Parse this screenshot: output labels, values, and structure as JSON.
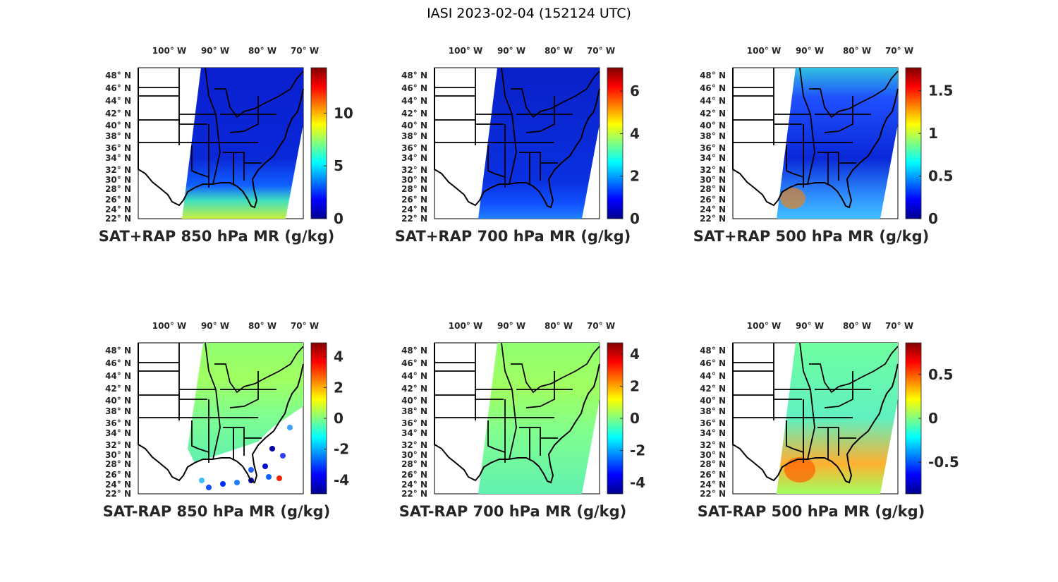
{
  "title": "IASI 2023-02-04 (152124 UTC)",
  "lon_labels": [
    "100° W",
    "90° W",
    "80° W",
    "70° W"
  ],
  "lat_labels": [
    "48° N",
    "46° N",
    "44° N",
    "42° N",
    "40° N",
    "38° N",
    "36° N",
    "34° N",
    "32° N",
    "30° N",
    "28° N",
    "26° N",
    "24° N",
    "22° N"
  ],
  "colormap": "jet",
  "panels": [
    {
      "label": "SAT+RAP 850 hPa MR (g/kg)",
      "clim": [
        0,
        14.3
      ],
      "ticks": [
        "0",
        "5",
        "10"
      ],
      "tick_values": [
        0,
        5,
        10
      ],
      "field": "sum"
    },
    {
      "label": "SAT+RAP 700 hPa MR (g/kg)",
      "clim": [
        0,
        7.1
      ],
      "ticks": [
        "0",
        "2",
        "4",
        "6"
      ],
      "tick_values": [
        0,
        2,
        4,
        6
      ],
      "field": "sum"
    },
    {
      "label": "SAT+RAP 500 hPa MR (g/kg)",
      "clim": [
        0,
        1.77
      ],
      "ticks": [
        "0",
        "0.5",
        "1",
        "1.5"
      ],
      "tick_values": [
        0,
        0.5,
        1,
        1.5
      ],
      "field": "sum"
    },
    {
      "label": "SAT-RAP 850 hPa MR (g/kg)",
      "clim": [
        -4.9,
        4.9
      ],
      "ticks": [
        "-4",
        "-2",
        "0",
        "2",
        "4"
      ],
      "tick_values": [
        -4,
        -2,
        0,
        2,
        4
      ],
      "field": "diff"
    },
    {
      "label": "SAT-RAP 700 hPa MR (g/kg)",
      "clim": [
        -4.7,
        4.7
      ],
      "ticks": [
        "-4",
        "-2",
        "0",
        "2",
        "4"
      ],
      "tick_values": [
        -4,
        -2,
        0,
        2,
        4
      ],
      "field": "diff"
    },
    {
      "label": "SAT-RAP 500 hPa MR (g/kg)",
      "clim": [
        -0.86,
        0.86
      ],
      "ticks": [
        "-0.5",
        "0",
        "0.5"
      ],
      "tick_values": [
        -0.5,
        0,
        0.5
      ],
      "field": "diff"
    }
  ]
}
